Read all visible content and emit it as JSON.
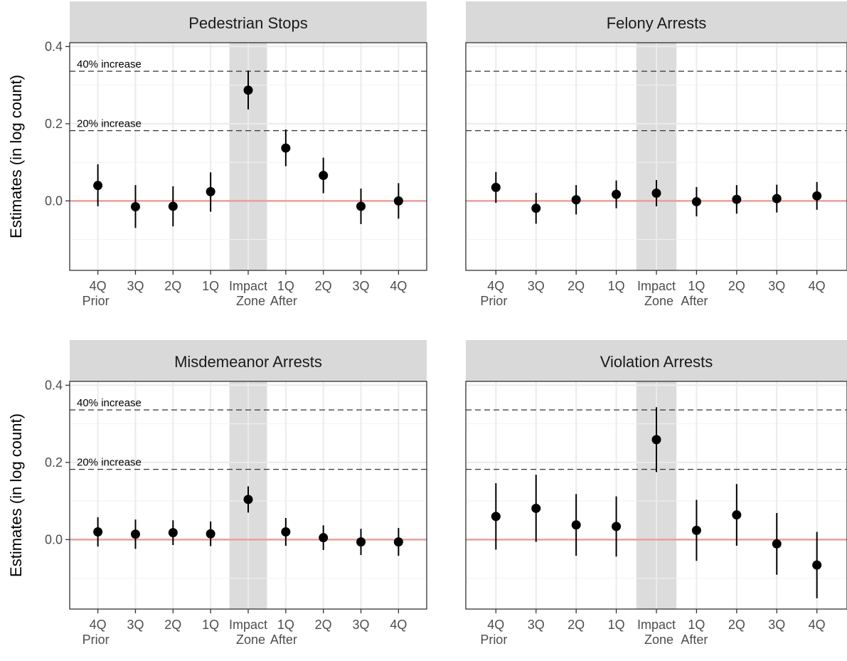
{
  "chart_data": {
    "type": "scatter",
    "ylabel": "Estimates (in log count)",
    "ylim": [
      -0.18,
      0.41
    ],
    "y_ticks": [
      "0.0",
      "0.2",
      "0.4"
    ],
    "x_categories": [
      {
        "line1": "4Q",
        "line2": "Prior"
      },
      {
        "line1": "3Q",
        "line2": ""
      },
      {
        "line1": "2Q",
        "line2": ""
      },
      {
        "line1": "1Q",
        "line2": ""
      },
      {
        "line1": "Impact",
        "line2": "Zone"
      },
      {
        "line1": "1Q",
        "line2": "After"
      },
      {
        "line1": "2Q",
        "line2": ""
      },
      {
        "line1": "3Q",
        "line2": ""
      },
      {
        "line1": "4Q",
        "line2": ""
      }
    ],
    "highlight_category_index": 4,
    "reference_lines": [
      {
        "label": "40% increase",
        "y": 0.336
      },
      {
        "label": "20% increase",
        "y": 0.182
      }
    ],
    "zero_line": {
      "y": 0.0,
      "color": "#e8a09a"
    },
    "panels": [
      {
        "title": "Pedestrian Stops",
        "estimates": [
          0.04,
          -0.015,
          -0.014,
          0.024,
          0.287,
          0.137,
          0.066,
          -0.014,
          0.0
        ],
        "lower": [
          -0.014,
          -0.07,
          -0.066,
          -0.028,
          0.237,
          0.09,
          0.02,
          -0.06,
          -0.046
        ],
        "upper": [
          0.095,
          0.041,
          0.038,
          0.074,
          0.338,
          0.185,
          0.112,
          0.032,
          0.046
        ]
      },
      {
        "title": "Felony Arrests",
        "estimates": [
          0.035,
          -0.019,
          0.003,
          0.017,
          0.02,
          -0.002,
          0.004,
          0.006,
          0.013
        ],
        "lower": [
          -0.005,
          -0.059,
          -0.035,
          -0.019,
          -0.014,
          -0.04,
          -0.033,
          -0.03,
          -0.023
        ],
        "upper": [
          0.075,
          0.021,
          0.041,
          0.053,
          0.054,
          0.036,
          0.041,
          0.042,
          0.049
        ]
      },
      {
        "title": "Misdemeanor Arrests",
        "estimates": [
          0.02,
          0.014,
          0.018,
          0.015,
          0.104,
          0.02,
          0.005,
          -0.006,
          -0.006
        ],
        "lower": [
          -0.018,
          -0.024,
          -0.014,
          -0.017,
          0.07,
          -0.016,
          -0.027,
          -0.04,
          -0.042
        ],
        "upper": [
          0.058,
          0.052,
          0.05,
          0.047,
          0.138,
          0.056,
          0.037,
          0.028,
          0.03
        ]
      },
      {
        "title": "Violation Arrests",
        "estimates": [
          0.06,
          0.081,
          0.038,
          0.034,
          0.259,
          0.024,
          0.064,
          -0.011,
          -0.066
        ],
        "lower": [
          -0.026,
          -0.006,
          -0.042,
          -0.044,
          0.175,
          -0.055,
          -0.016,
          -0.091,
          -0.152
        ],
        "upper": [
          0.146,
          0.168,
          0.118,
          0.112,
          0.343,
          0.103,
          0.144,
          0.069,
          0.02
        ]
      }
    ],
    "grid": true,
    "marker_color": "#000000"
  }
}
